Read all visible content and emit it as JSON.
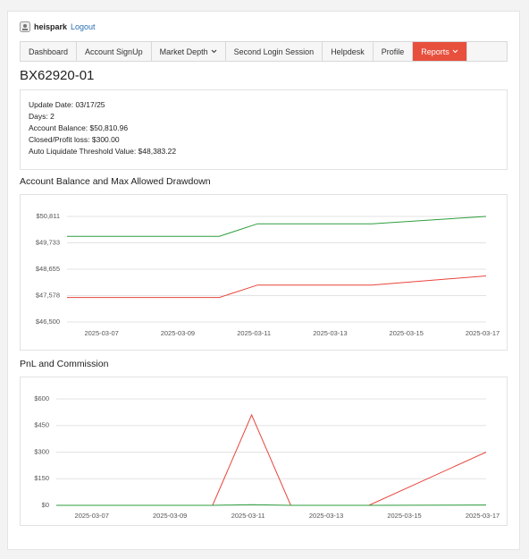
{
  "header": {
    "user": "heispark",
    "logout": "Logout"
  },
  "nav": [
    "Dashboard",
    "Account SignUp",
    "Market Depth",
    "Second Login Session",
    "Helpdesk",
    "Profile",
    "Reports"
  ],
  "title": "BX62920-01",
  "info": [
    "Update Date: 03/17/25",
    "Days: 2",
    "Account Balance: $50,810.96",
    "Closed/Profit loss: $300.00",
    "Auto Liquidate Threshold Value: $48,383.22"
  ],
  "chart_data": [
    {
      "type": "line",
      "title": "Account Balance and Max Allowed Drawdown",
      "x": [
        "2025-03-06",
        "2025-03-07",
        "2025-03-10",
        "2025-03-11",
        "2025-03-12",
        "2025-03-13",
        "2025-03-14",
        "2025-03-17"
      ],
      "xlim": [
        "2025-03-06",
        "2025-03-17"
      ],
      "xticks": [
        "2025-03-07",
        "2025-03-09",
        "2025-03-11",
        "2025-03-13",
        "2025-03-15",
        "2025-03-17"
      ],
      "ylim": [
        46500,
        50811
      ],
      "yticks": [
        {
          "value": 46500,
          "label": "$46,500"
        },
        {
          "value": 47578,
          "label": "$47,578"
        },
        {
          "value": 48655,
          "label": "$48,655"
        },
        {
          "value": 49733,
          "label": "$49,733"
        },
        {
          "value": 50811,
          "label": "$50,811"
        }
      ],
      "grid": true,
      "series": [
        {
          "color": "#2e9e3e",
          "values": [
            50000,
            50000,
            50000,
            50510,
            50510,
            50510,
            50510,
            50810.96
          ]
        },
        {
          "color": "#e8453c",
          "values": [
            47500,
            47500,
            47500,
            48010,
            48010,
            48010,
            48010,
            48383.22
          ]
        }
      ]
    },
    {
      "type": "line",
      "title": "PnL and Commission",
      "x": [
        "2025-03-06",
        "2025-03-07",
        "2025-03-10",
        "2025-03-11",
        "2025-03-12",
        "2025-03-13",
        "2025-03-14",
        "2025-03-17"
      ],
      "xlim": [
        "2025-03-06",
        "2025-03-17"
      ],
      "xticks": [
        "2025-03-07",
        "2025-03-09",
        "2025-03-11",
        "2025-03-13",
        "2025-03-15",
        "2025-03-17"
      ],
      "ylim": [
        0,
        600
      ],
      "yticks": [
        {
          "value": 0,
          "label": "$0"
        },
        {
          "value": 150,
          "label": "$150"
        },
        {
          "value": 300,
          "label": "$300"
        },
        {
          "value": 450,
          "label": "$450"
        },
        {
          "value": 600,
          "label": "$600"
        }
      ],
      "grid": true,
      "series": [
        {
          "color": "#e8453c",
          "values": [
            0,
            0,
            0,
            510,
            0,
            0,
            0,
            300
          ]
        },
        {
          "color": "#2e9e3e",
          "values": [
            0,
            0,
            0,
            4,
            0,
            0,
            0,
            2
          ]
        }
      ]
    }
  ]
}
